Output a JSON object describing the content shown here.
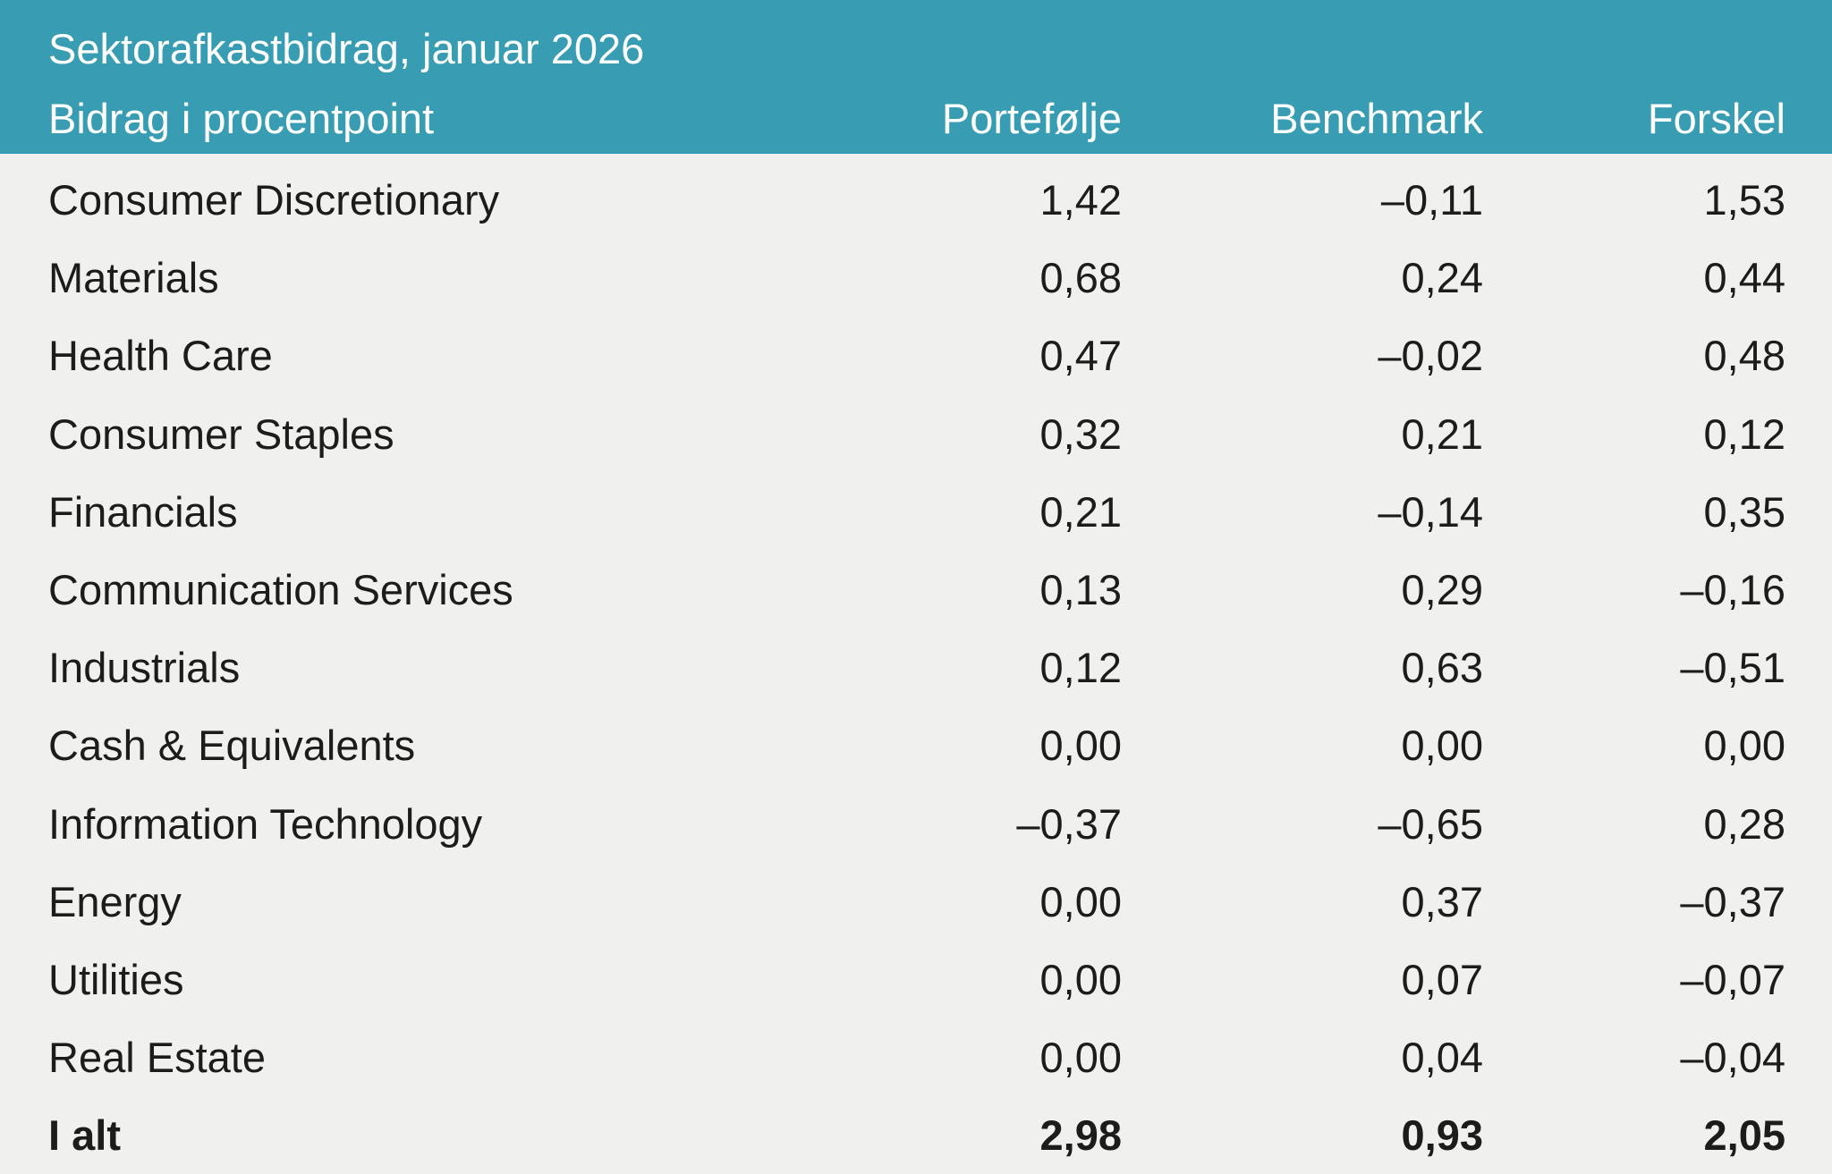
{
  "header": {
    "title": "Sektorafkastbidrag, januar 2026",
    "columns": [
      "Bidrag i procentpoint",
      "Portefølje",
      "Benchmark",
      "Forskel"
    ]
  },
  "colors": {
    "header_bg": "#389DB2",
    "header_text": "#FDFEFE",
    "body_bg": "#F0F0EE",
    "body_text": "#1C1C1A"
  },
  "chart_data": {
    "type": "table",
    "title": "Sektorafkastbidrag, januar 2026",
    "subtitle": "Bidrag i procentpoint",
    "number_format": "da-DK (comma decimal separator, en-dash minus)",
    "columns": [
      "Bidrag i procentpoint",
      "Portefølje",
      "Benchmark",
      "Forskel"
    ],
    "rows": [
      {
        "label": "Consumer Discretionary",
        "values": [
          "1,42",
          "–0,11",
          "1,53"
        ]
      },
      {
        "label": "Materials",
        "values": [
          "0,68",
          "0,24",
          "0,44"
        ]
      },
      {
        "label": "Health Care",
        "values": [
          "0,47",
          "–0,02",
          "0,48"
        ]
      },
      {
        "label": "Consumer Staples",
        "values": [
          "0,32",
          "0,21",
          "0,12"
        ]
      },
      {
        "label": "Financials",
        "values": [
          "0,21",
          "–0,14",
          "0,35"
        ]
      },
      {
        "label": "Communication Services",
        "values": [
          "0,13",
          "0,29",
          "–0,16"
        ]
      },
      {
        "label": "Industrials",
        "values": [
          "0,12",
          "0,63",
          "–0,51"
        ]
      },
      {
        "label": "Cash & Equivalents",
        "values": [
          "0,00",
          "0,00",
          "0,00"
        ]
      },
      {
        "label": "Information Technology",
        "values": [
          "–0,37",
          "–0,65",
          "0,28"
        ]
      },
      {
        "label": "Energy",
        "values": [
          "0,00",
          "0,37",
          "–0,37"
        ]
      },
      {
        "label": "Utilities",
        "values": [
          "0,00",
          "0,07",
          "–0,07"
        ]
      },
      {
        "label": "Real Estate",
        "values": [
          "0,00",
          "0,04",
          "–0,04"
        ]
      }
    ],
    "total": {
      "label": "I alt",
      "values": [
        "2,98",
        "0,93",
        "2,05"
      ]
    }
  }
}
